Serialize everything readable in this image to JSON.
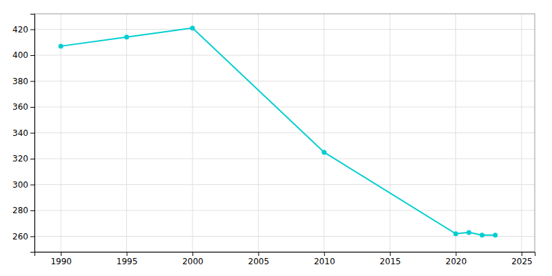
{
  "chart_data": {
    "type": "line",
    "x": [
      1990,
      1995,
      2000,
      2010,
      2020,
      2021,
      2022,
      2023
    ],
    "values": [
      407,
      414,
      421,
      325,
      262,
      263,
      261,
      261
    ],
    "color": "#00CED1",
    "marker": "circle",
    "xlim": [
      1988,
      2026
    ],
    "ylim": [
      248,
      432
    ],
    "xticks": [
      1990,
      1995,
      2000,
      2005,
      2010,
      2015,
      2020,
      2025
    ],
    "yticks": [
      260,
      280,
      300,
      320,
      340,
      360,
      380,
      400,
      420
    ],
    "grid": true
  }
}
